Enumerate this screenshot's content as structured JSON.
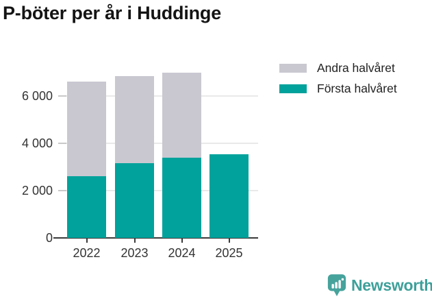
{
  "title": "P-böter per år i Huddinge",
  "legend": {
    "items": [
      {
        "label": "Andra halvåret",
        "color": "#c9c8d1"
      },
      {
        "label": "Första halvåret",
        "color": "#00a29b"
      }
    ]
  },
  "chart_data": {
    "type": "bar",
    "stacked": true,
    "title": "P-böter per år i Huddinge",
    "categories": [
      "2022",
      "2023",
      "2024",
      "2025"
    ],
    "series": [
      {
        "name": "Första halvåret",
        "color": "#00a29b",
        "values": [
          2600,
          3150,
          3400,
          3550
        ]
      },
      {
        "name": "Andra halvåret",
        "color": "#c9c8d1",
        "values": [
          4000,
          3700,
          3600,
          0
        ]
      }
    ],
    "totals": [
      6600,
      6850,
      7000,
      3550
    ],
    "xlabel": "",
    "ylabel": "",
    "ylim": [
      0,
      7200
    ],
    "yticks": [
      0,
      2000,
      4000,
      6000
    ],
    "ytick_labels": [
      "0",
      "2 000",
      "4 000",
      "6 000"
    ],
    "grid": "horizontal",
    "legend_position": "top-right"
  },
  "branding": {
    "name": "Newsworthy",
    "logo_icon": "speech-bubble-bar-chart",
    "color": "#3da09a"
  },
  "colors": {
    "first_half": "#00a29b",
    "second_half": "#c9c8d1",
    "axis": "#3a3a3a",
    "gridline": "#e9e9e9",
    "text": "#333333",
    "title": "#141414"
  }
}
